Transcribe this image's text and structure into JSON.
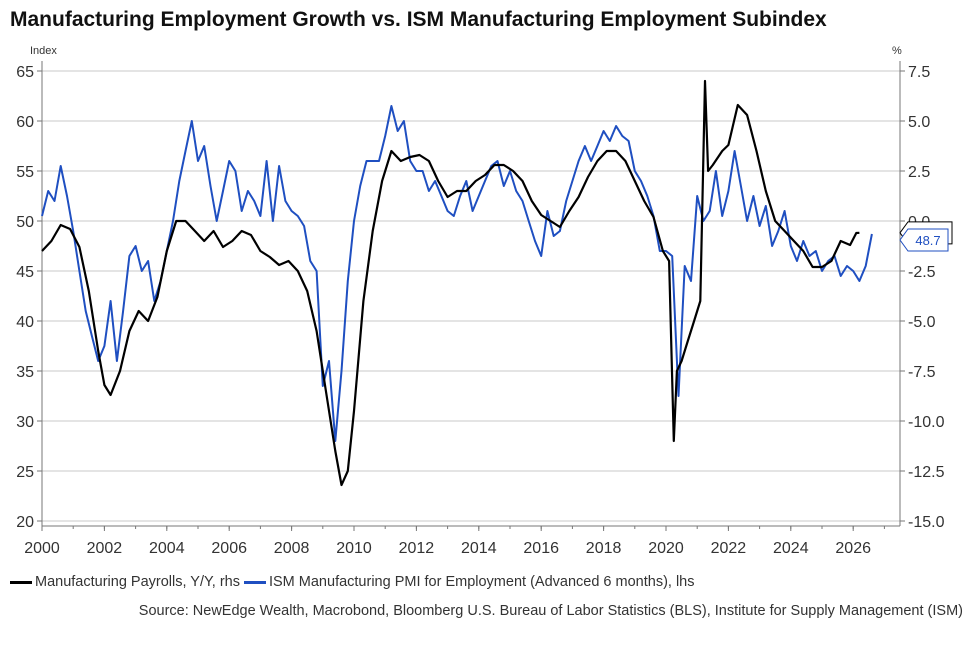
{
  "title": "Manufacturing Employment Growth vs. ISM Manufacturing Employment Subindex",
  "source": "Source: NewEdge Wealth, Macrobond, Bloomberg U.S. Bureau of Labor Statistics (BLS), Institute for Supply Management (ISM)",
  "colors": {
    "payrolls": "#000000",
    "ism": "#1f4fc1",
    "grid": "#c8c8c8",
    "axis": "#777777"
  },
  "chart_data": {
    "type": "line",
    "title": "Manufacturing Employment Growth vs. ISM Manufacturing Employment Subindex",
    "left_axis": {
      "label": "Index",
      "ylim": [
        20,
        65
      ],
      "ticks": [
        "20",
        "25",
        "30",
        "35",
        "40",
        "45",
        "50",
        "55",
        "60",
        "65"
      ]
    },
    "right_axis": {
      "label": "%",
      "ylim": [
        -15,
        7.5
      ],
      "ticks": [
        "-15.0",
        "-12.5",
        "-10.0",
        "-7.5",
        "-5.0",
        "-2.5",
        "0.0",
        "2.5",
        "5.0",
        "7.5"
      ]
    },
    "x_axis": {
      "xlim": [
        2000,
        2027.5
      ],
      "ticks": [
        "2000",
        "2002",
        "2004",
        "2006",
        "2008",
        "2010",
        "2012",
        "2014",
        "2016",
        "2018",
        "2020",
        "2022",
        "2024",
        "2026"
      ]
    },
    "grid": true,
    "legend_position": "bottom",
    "series": [
      {
        "name": "Manufacturing Payrolls, Y/Y, rhs",
        "axis": "right",
        "last_value_label": "-0.592",
        "x": [
          2000.0,
          2000.3,
          2000.6,
          2000.9,
          2001.2,
          2001.5,
          2001.8,
          2002.0,
          2002.2,
          2002.5,
          2002.8,
          2003.1,
          2003.4,
          2003.7,
          2004.0,
          2004.3,
          2004.6,
          2004.9,
          2005.2,
          2005.5,
          2005.8,
          2006.1,
          2006.4,
          2006.7,
          2007.0,
          2007.3,
          2007.6,
          2007.9,
          2008.2,
          2008.5,
          2008.8,
          2009.1,
          2009.4,
          2009.6,
          2009.8,
          2010.0,
          2010.3,
          2010.6,
          2010.9,
          2011.2,
          2011.5,
          2011.8,
          2012.1,
          2012.4,
          2012.7,
          2013.0,
          2013.3,
          2013.6,
          2013.9,
          2014.2,
          2014.5,
          2014.8,
          2015.1,
          2015.4,
          2015.7,
          2016.0,
          2016.3,
          2016.6,
          2016.9,
          2017.2,
          2017.5,
          2017.8,
          2018.1,
          2018.4,
          2018.7,
          2019.0,
          2019.3,
          2019.6,
          2019.9,
          2020.1,
          2020.25,
          2020.35,
          2020.5,
          2020.7,
          2020.9,
          2021.1,
          2021.25,
          2021.35,
          2021.5,
          2021.8,
          2022.0,
          2022.3,
          2022.6,
          2022.9,
          2023.2,
          2023.5,
          2023.8,
          2024.1,
          2024.4,
          2024.7,
          2025.0,
          2025.3,
          2025.6,
          2025.9,
          2026.1,
          2026.2
        ],
        "values": [
          -1.5,
          -1.0,
          -0.2,
          -0.4,
          -1.3,
          -3.5,
          -6.5,
          -8.2,
          -8.7,
          -7.5,
          -5.5,
          -4.5,
          -5.0,
          -3.8,
          -1.5,
          0.0,
          0.0,
          -0.5,
          -1.0,
          -0.5,
          -1.3,
          -1.0,
          -0.5,
          -0.7,
          -1.5,
          -1.8,
          -2.2,
          -2.0,
          -2.5,
          -3.5,
          -5.5,
          -8.5,
          -11.5,
          -13.2,
          -12.5,
          -9.5,
          -4.0,
          -0.5,
          2.0,
          3.5,
          3.0,
          3.2,
          3.3,
          3.0,
          2.0,
          1.2,
          1.5,
          1.5,
          2.0,
          2.3,
          2.8,
          2.8,
          2.5,
          2.0,
          1.0,
          0.3,
          0.0,
          -0.3,
          0.5,
          1.2,
          2.2,
          3.0,
          3.5,
          3.5,
          3.0,
          2.0,
          1.0,
          0.2,
          -1.5,
          -2.0,
          -11.0,
          -7.5,
          -7.0,
          -6.0,
          -5.0,
          -4.0,
          7.0,
          2.5,
          2.8,
          3.5,
          3.8,
          5.8,
          5.3,
          3.5,
          1.5,
          0.0,
          -0.5,
          -1.0,
          -1.5,
          -2.3,
          -2.3,
          -2.0,
          -1.0,
          -1.2,
          -0.6,
          -0.592
        ]
      },
      {
        "name": "ISM Manufacturing PMI for Employment (Advanced 6 months), lhs",
        "axis": "left",
        "last_value_label": "48.7",
        "x": [
          2000.0,
          2000.2,
          2000.4,
          2000.6,
          2000.8,
          2001.0,
          2001.2,
          2001.4,
          2001.6,
          2001.8,
          2002.0,
          2002.2,
          2002.4,
          2002.6,
          2002.8,
          2003.0,
          2003.2,
          2003.4,
          2003.6,
          2003.8,
          2004.0,
          2004.2,
          2004.4,
          2004.6,
          2004.8,
          2005.0,
          2005.2,
          2005.4,
          2005.6,
          2005.8,
          2006.0,
          2006.2,
          2006.4,
          2006.6,
          2006.8,
          2007.0,
          2007.2,
          2007.4,
          2007.6,
          2007.8,
          2008.0,
          2008.2,
          2008.4,
          2008.6,
          2008.8,
          2009.0,
          2009.2,
          2009.4,
          2009.6,
          2009.8,
          2010.0,
          2010.2,
          2010.4,
          2010.6,
          2010.8,
          2011.0,
          2011.2,
          2011.4,
          2011.6,
          2011.8,
          2012.0,
          2012.2,
          2012.4,
          2012.6,
          2012.8,
          2013.0,
          2013.2,
          2013.4,
          2013.6,
          2013.8,
          2014.0,
          2014.2,
          2014.4,
          2014.6,
          2014.8,
          2015.0,
          2015.2,
          2015.4,
          2015.6,
          2015.8,
          2016.0,
          2016.2,
          2016.4,
          2016.6,
          2016.8,
          2017.0,
          2017.2,
          2017.4,
          2017.6,
          2017.8,
          2018.0,
          2018.2,
          2018.4,
          2018.6,
          2018.8,
          2019.0,
          2019.2,
          2019.4,
          2019.6,
          2019.8,
          2020.0,
          2020.2,
          2020.4,
          2020.6,
          2020.8,
          2021.0,
          2021.2,
          2021.4,
          2021.6,
          2021.8,
          2022.0,
          2022.2,
          2022.4,
          2022.6,
          2022.8,
          2023.0,
          2023.2,
          2023.4,
          2023.6,
          2023.8,
          2024.0,
          2024.2,
          2024.4,
          2024.6,
          2024.8,
          2025.0,
          2025.2,
          2025.4,
          2025.6,
          2025.8,
          2026.0,
          2026.2,
          2026.4,
          2026.6
        ],
        "values": [
          50.5,
          53.0,
          52.0,
          55.5,
          52.5,
          49.0,
          45.0,
          41.0,
          38.5,
          36.0,
          37.5,
          42.0,
          36.0,
          41.0,
          46.5,
          47.5,
          45.0,
          46.0,
          42.0,
          44.0,
          47.0,
          50.0,
          54.0,
          57.0,
          60.0,
          56.0,
          57.5,
          53.5,
          50.0,
          53.0,
          56.0,
          55.0,
          51.0,
          53.0,
          52.0,
          50.5,
          56.0,
          50.0,
          55.5,
          52.0,
          51.0,
          50.5,
          49.5,
          46.0,
          45.0,
          33.5,
          36.0,
          28.0,
          35.0,
          44.0,
          50.0,
          53.5,
          56.0,
          56.0,
          56.0,
          58.5,
          61.5,
          59.0,
          60.0,
          56.0,
          55.0,
          55.0,
          53.0,
          54.0,
          52.5,
          51.0,
          50.5,
          52.5,
          54.0,
          51.0,
          52.5,
          54.0,
          55.5,
          56.0,
          53.5,
          55.0,
          53.0,
          52.0,
          50.0,
          48.0,
          46.5,
          51.0,
          48.5,
          49.0,
          52.0,
          54.0,
          56.0,
          57.5,
          56.0,
          57.5,
          59.0,
          58.0,
          59.5,
          58.5,
          58.0,
          55.0,
          54.0,
          52.5,
          50.5,
          47.0,
          47.0,
          46.5,
          32.5,
          45.5,
          44.0,
          52.5,
          50.0,
          51.0,
          55.0,
          50.5,
          53.0,
          57.0,
          53.5,
          50.0,
          52.5,
          49.5,
          51.5,
          47.5,
          49.0,
          51.0,
          47.5,
          46.0,
          48.0,
          46.5,
          47.0,
          45.0,
          46.0,
          46.5,
          44.5,
          45.5,
          45.0,
          44.0,
          45.5,
          48.7
        ]
      }
    ]
  },
  "legend": {
    "payrolls_label": "Manufacturing Payrolls, Y/Y, rhs",
    "ism_label": "ISM Manufacturing PMI for Employment (Advanced 6 months), lhs"
  }
}
